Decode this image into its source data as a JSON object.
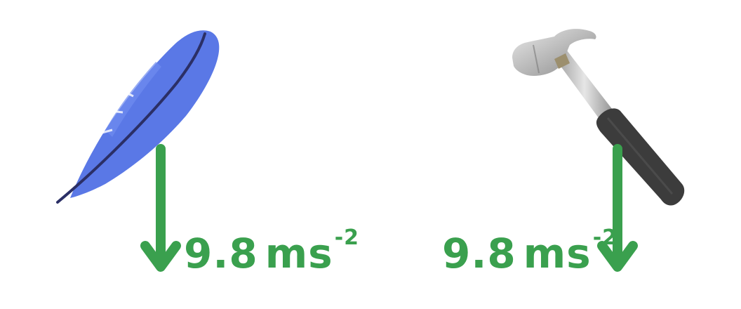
{
  "colors": {
    "background": "#ffffff",
    "arrow": "#3aa04e",
    "feather": "#5a78e6",
    "feather_dark": "#3e55c4",
    "feather_shaft": "#2b2f66",
    "hammer_metal": "#c9c9c9",
    "hammer_metal_dark": "#8e8e8e",
    "hammer_grip": "#3c3c3c"
  },
  "icons": {
    "feather": "feather-icon",
    "hammer": "hammer-icon",
    "arrow": "down-arrow-icon"
  },
  "feather": {
    "acceleration": {
      "value": "9.8",
      "unit": "ms",
      "exponent": "-2"
    }
  },
  "hammer": {
    "acceleration": {
      "value": "9.8",
      "unit": "ms",
      "exponent": "-2"
    }
  }
}
